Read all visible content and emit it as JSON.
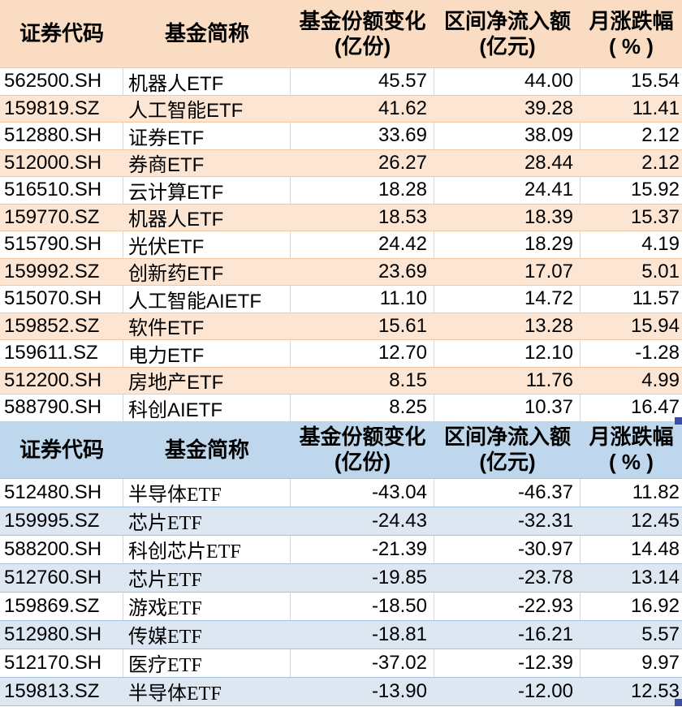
{
  "sheet": {
    "tables": [
      {
        "name": "inflow-table",
        "theme": {
          "header_bg": "#f9dcc2",
          "alt_bg": "#fce5d3",
          "hline": "#f2c7a2",
          "handle": "#3b4ea3"
        },
        "headers": {
          "code": "证券代码",
          "name": "基金简称",
          "share_change_1": "基金份额变化",
          "share_change_2": "(亿份)",
          "net_inflow_1": "区间净流入额",
          "net_inflow_2": "(亿元)",
          "monthly_1": "月涨跌幅",
          "monthly_2": "( % )"
        },
        "rows": [
          {
            "code": "562500.SH",
            "name": "机器人ETF",
            "share_change": "45.57",
            "net_inflow": "44.00",
            "monthly_change": "15.54"
          },
          {
            "code": "159819.SZ",
            "name": "人工智能ETF",
            "share_change": "41.62",
            "net_inflow": "39.28",
            "monthly_change": "11.41"
          },
          {
            "code": "512880.SH",
            "name": "证券ETF",
            "share_change": "33.69",
            "net_inflow": "38.09",
            "monthly_change": "2.12"
          },
          {
            "code": "512000.SH",
            "name": "券商ETF",
            "share_change": "26.27",
            "net_inflow": "28.44",
            "monthly_change": "2.12"
          },
          {
            "code": "516510.SH",
            "name": "云计算ETF",
            "share_change": "18.28",
            "net_inflow": "24.41",
            "monthly_change": "15.92"
          },
          {
            "code": "159770.SZ",
            "name": "机器人ETF",
            "share_change": "18.53",
            "net_inflow": "18.39",
            "monthly_change": "15.37"
          },
          {
            "code": "515790.SH",
            "name": "光伏ETF",
            "share_change": "24.42",
            "net_inflow": "18.29",
            "monthly_change": "4.19"
          },
          {
            "code": "159992.SZ",
            "name": "创新药ETF",
            "share_change": "23.69",
            "net_inflow": "17.07",
            "monthly_change": "5.01"
          },
          {
            "code": "515070.SH",
            "name": "人工智能AIETF",
            "share_change": "11.10",
            "net_inflow": "14.72",
            "monthly_change": "11.57"
          },
          {
            "code": "159852.SZ",
            "name": "软件ETF",
            "share_change": "15.61",
            "net_inflow": "13.28",
            "monthly_change": "15.94"
          },
          {
            "code": "159611.SZ",
            "name": "电力ETF",
            "share_change": "12.70",
            "net_inflow": "12.10",
            "monthly_change": "-1.28"
          },
          {
            "code": "512200.SH",
            "name": "房地产ETF",
            "share_change": "8.15",
            "net_inflow": "11.76",
            "monthly_change": "4.99"
          },
          {
            "code": "588790.SH",
            "name": "科创AIETF",
            "share_change": "8.25",
            "net_inflow": "10.37",
            "monthly_change": "16.47"
          }
        ]
      },
      {
        "name": "outflow-table",
        "theme": {
          "header_bg": "#bed7ec",
          "alt_bg": "#dde7f2",
          "hline": "#a9c3e0",
          "handle": "#3b4ea3"
        },
        "headers": {
          "code": "证券代码",
          "name": "基金简称",
          "share_change_1": "基金份额变化",
          "share_change_2": "(亿份)",
          "net_inflow_1": "区间净流入额",
          "net_inflow_2": "(亿元)",
          "monthly_1": "月涨跌幅",
          "monthly_2": "( % )"
        },
        "rows": [
          {
            "code": "512480.SH",
            "name": "半导体ETF",
            "share_change": "-43.04",
            "net_inflow": "-46.37",
            "monthly_change": "11.82"
          },
          {
            "code": "159995.SZ",
            "name": "芯片ETF",
            "share_change": "-24.43",
            "net_inflow": "-32.31",
            "monthly_change": "12.45"
          },
          {
            "code": "588200.SH",
            "name": "科创芯片ETF",
            "share_change": "-21.39",
            "net_inflow": "-30.97",
            "monthly_change": "14.48"
          },
          {
            "code": "512760.SH",
            "name": "芯片ETF",
            "share_change": "-19.85",
            "net_inflow": "-23.78",
            "monthly_change": "13.14"
          },
          {
            "code": "159869.SZ",
            "name": "游戏ETF",
            "share_change": "-18.50",
            "net_inflow": "-22.93",
            "monthly_change": "16.92"
          },
          {
            "code": "512980.SH",
            "name": "传媒ETF",
            "share_change": "-18.81",
            "net_inflow": "-16.21",
            "monthly_change": "5.57"
          },
          {
            "code": "512170.SH",
            "name": "医疗ETF",
            "share_change": "-37.02",
            "net_inflow": "-12.39",
            "monthly_change": "9.97"
          },
          {
            "code": "159813.SZ",
            "name": "半导体ETF",
            "share_change": "-13.90",
            "net_inflow": "-12.00",
            "monthly_change": "12.53"
          }
        ]
      }
    ]
  }
}
